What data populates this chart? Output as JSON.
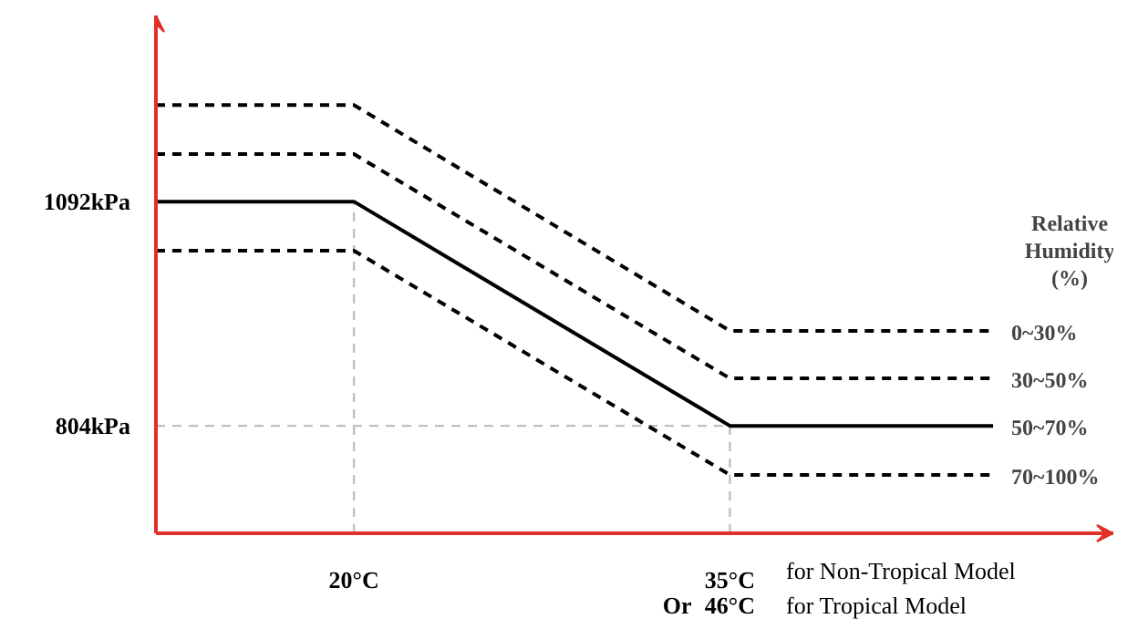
{
  "chart_data": {
    "type": "line",
    "xlim": [
      12.1,
      50.3
    ],
    "ylim": [
      666,
      1331
    ],
    "xticks": [
      {
        "value": 20,
        "label": "20°C"
      },
      {
        "value": 35,
        "label": "35°C"
      }
    ],
    "yticks": [
      {
        "value": 804,
        "label": "804kPa"
      },
      {
        "value": 1092,
        "label": "1092kPa"
      }
    ],
    "grid": false,
    "legend_title": "Relative Humidity (%)",
    "marker": "none",
    "series": [
      {
        "name": "0~30%",
        "color": "#000000",
        "line_style": "dashed",
        "x": [
          12.1,
          20,
          35,
          45.5
        ],
        "values": [
          1216,
          1216,
          926,
          926
        ]
      },
      {
        "name": "30~50%",
        "color": "#000000",
        "line_style": "dashed",
        "x": [
          12.1,
          20,
          35,
          45.5
        ],
        "values": [
          1153,
          1153,
          865,
          865
        ]
      },
      {
        "name": "50~70%",
        "color": "#000000",
        "line_style": "solid",
        "x": [
          12.1,
          20,
          35,
          45.5
        ],
        "values": [
          1092,
          1092,
          804,
          804
        ]
      },
      {
        "name": "70~100%",
        "color": "#000000",
        "line_style": "dashed",
        "x": [
          12.1,
          20,
          35,
          45.5
        ],
        "values": [
          1029,
          1029,
          741,
          741
        ]
      }
    ],
    "ref_lines": [
      {
        "axis": "x",
        "value": 20,
        "color": "#bfbfbf",
        "line_style": "dashed"
      },
      {
        "axis": "x",
        "value": 35,
        "color": "#bfbfbf",
        "line_style": "dashed"
      },
      {
        "axis": "y",
        "value": 804,
        "color": "#bfbfbf",
        "line_style": "dashed"
      }
    ],
    "annotations": [
      "Or",
      "46°C",
      "for Non-Tropical Model",
      "for Tropical Model"
    ]
  }
}
